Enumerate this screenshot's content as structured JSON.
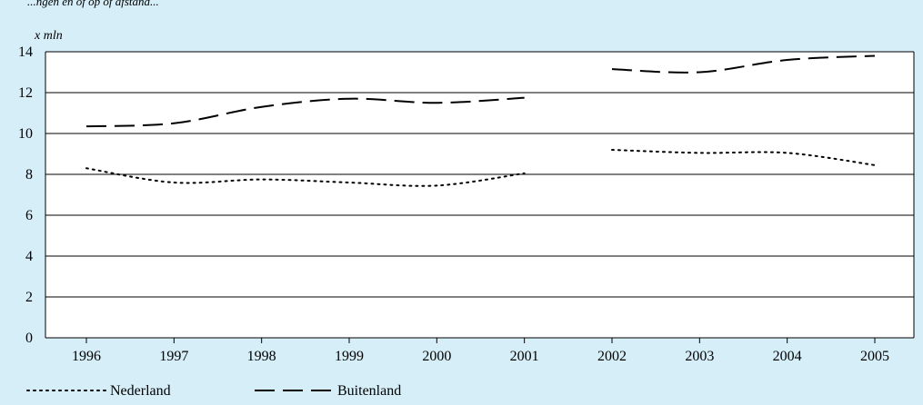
{
  "caption_partial": "...ngen en of op of afstand...",
  "chart_data": {
    "type": "line",
    "ylabel": "x mln",
    "ylim": [
      0,
      14
    ],
    "yticks": [
      0,
      2,
      4,
      6,
      8,
      10,
      12,
      14
    ],
    "categories": [
      "1996",
      "1997",
      "1998",
      "1999",
      "2000",
      "2001",
      "2002",
      "2003",
      "2004",
      "2005"
    ],
    "grid": true,
    "legend_position": "bottom",
    "series": [
      {
        "name": "Nederland",
        "style": "dotted",
        "color": "#000000",
        "values": [
          8.3,
          7.6,
          7.75,
          7.6,
          7.45,
          8.05,
          9.2,
          9.05,
          9.05,
          8.45
        ],
        "break_after_index": 5
      },
      {
        "name": "Buitenland",
        "style": "dashed",
        "color": "#000000",
        "values": [
          10.35,
          10.5,
          11.3,
          11.7,
          11.5,
          11.75,
          13.15,
          13.0,
          13.6,
          13.8
        ],
        "break_after_index": 5
      }
    ]
  }
}
